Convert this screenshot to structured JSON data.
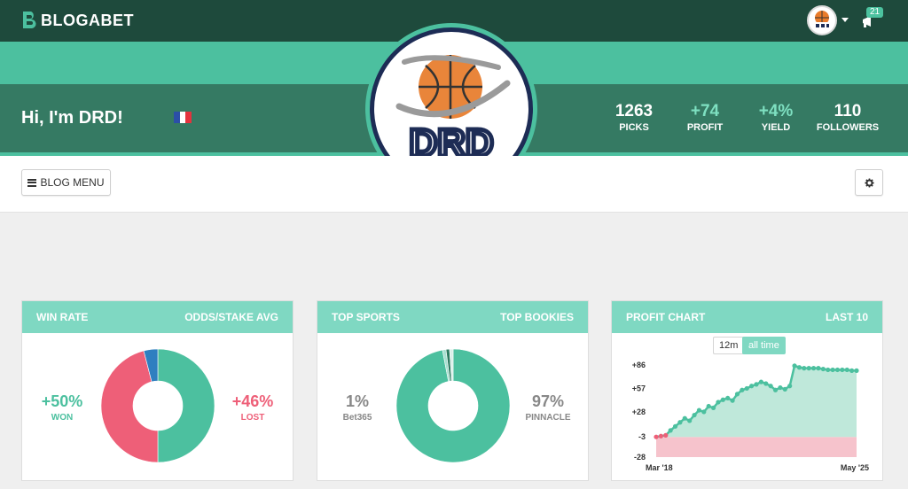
{
  "brand": {
    "name": "BLOGABET"
  },
  "nav": {
    "notification_count": "21"
  },
  "profile": {
    "greeting": "Hi, I'm DRD!",
    "logo_text": "DRD",
    "stats": [
      {
        "value": "1263",
        "label": "PICKS",
        "highlight": false
      },
      {
        "value": "+74",
        "label": "PROFIT",
        "highlight": true
      },
      {
        "value": "+4%",
        "label": "YIELD",
        "highlight": true
      },
      {
        "value": "110",
        "label": "FOLLOWERS",
        "highlight": false
      }
    ]
  },
  "toolbar": {
    "blog_menu_label": "BLOG MENU"
  },
  "cards": {
    "win_rate": {
      "title": "WIN RATE",
      "right_title": "ODDS/STAKE AVG",
      "won_pct": "+50%",
      "won_label": "WON",
      "lost_pct": "+46%",
      "lost_label": "LOST",
      "donut": [
        {
          "value": 50,
          "color": "#4cc09f"
        },
        {
          "value": 46,
          "color": "#ee5f78"
        },
        {
          "value": 4,
          "color": "#2f7fc0"
        }
      ]
    },
    "top_sports": {
      "title": "TOP SPORTS",
      "right_title": "TOP BOOKIES",
      "left_pct": "1%",
      "left_label": "Bet365",
      "right_pct": "97%",
      "right_label": "PINNACLE",
      "donut": [
        {
          "value": 97,
          "color": "#4cc09f"
        },
        {
          "value": 1,
          "color": "#a8e0d1"
        },
        {
          "value": 1,
          "color": "#2c7a60"
        },
        {
          "value": 1,
          "color": "#d9efe9"
        }
      ]
    },
    "profit_chart": {
      "title": "PROFIT CHART",
      "right_title": "LAST 10",
      "toggle_12m": "12m",
      "toggle_all": "all time"
    }
  },
  "colors": {
    "nav": "#1e4a3c",
    "accent": "#4cc09f",
    "band": "#357a63",
    "lost": "#ee5f78"
  },
  "chart_data": {
    "type": "area",
    "x_start_label": "Mar '18",
    "x_end_label": "May '25",
    "yticks": [
      "+86",
      "+57",
      "+28",
      "-3",
      "-28"
    ],
    "ylim": [
      -28,
      86
    ],
    "y": [
      -3,
      -2,
      -1,
      5,
      10,
      15,
      20,
      17,
      24,
      30,
      28,
      35,
      33,
      40,
      43,
      45,
      42,
      50,
      55,
      57,
      60,
      62,
      65,
      63,
      60,
      55,
      58,
      56,
      60,
      85,
      83,
      82,
      82,
      82,
      82,
      81,
      80,
      80,
      80,
      80,
      80,
      79,
      79
    ]
  }
}
